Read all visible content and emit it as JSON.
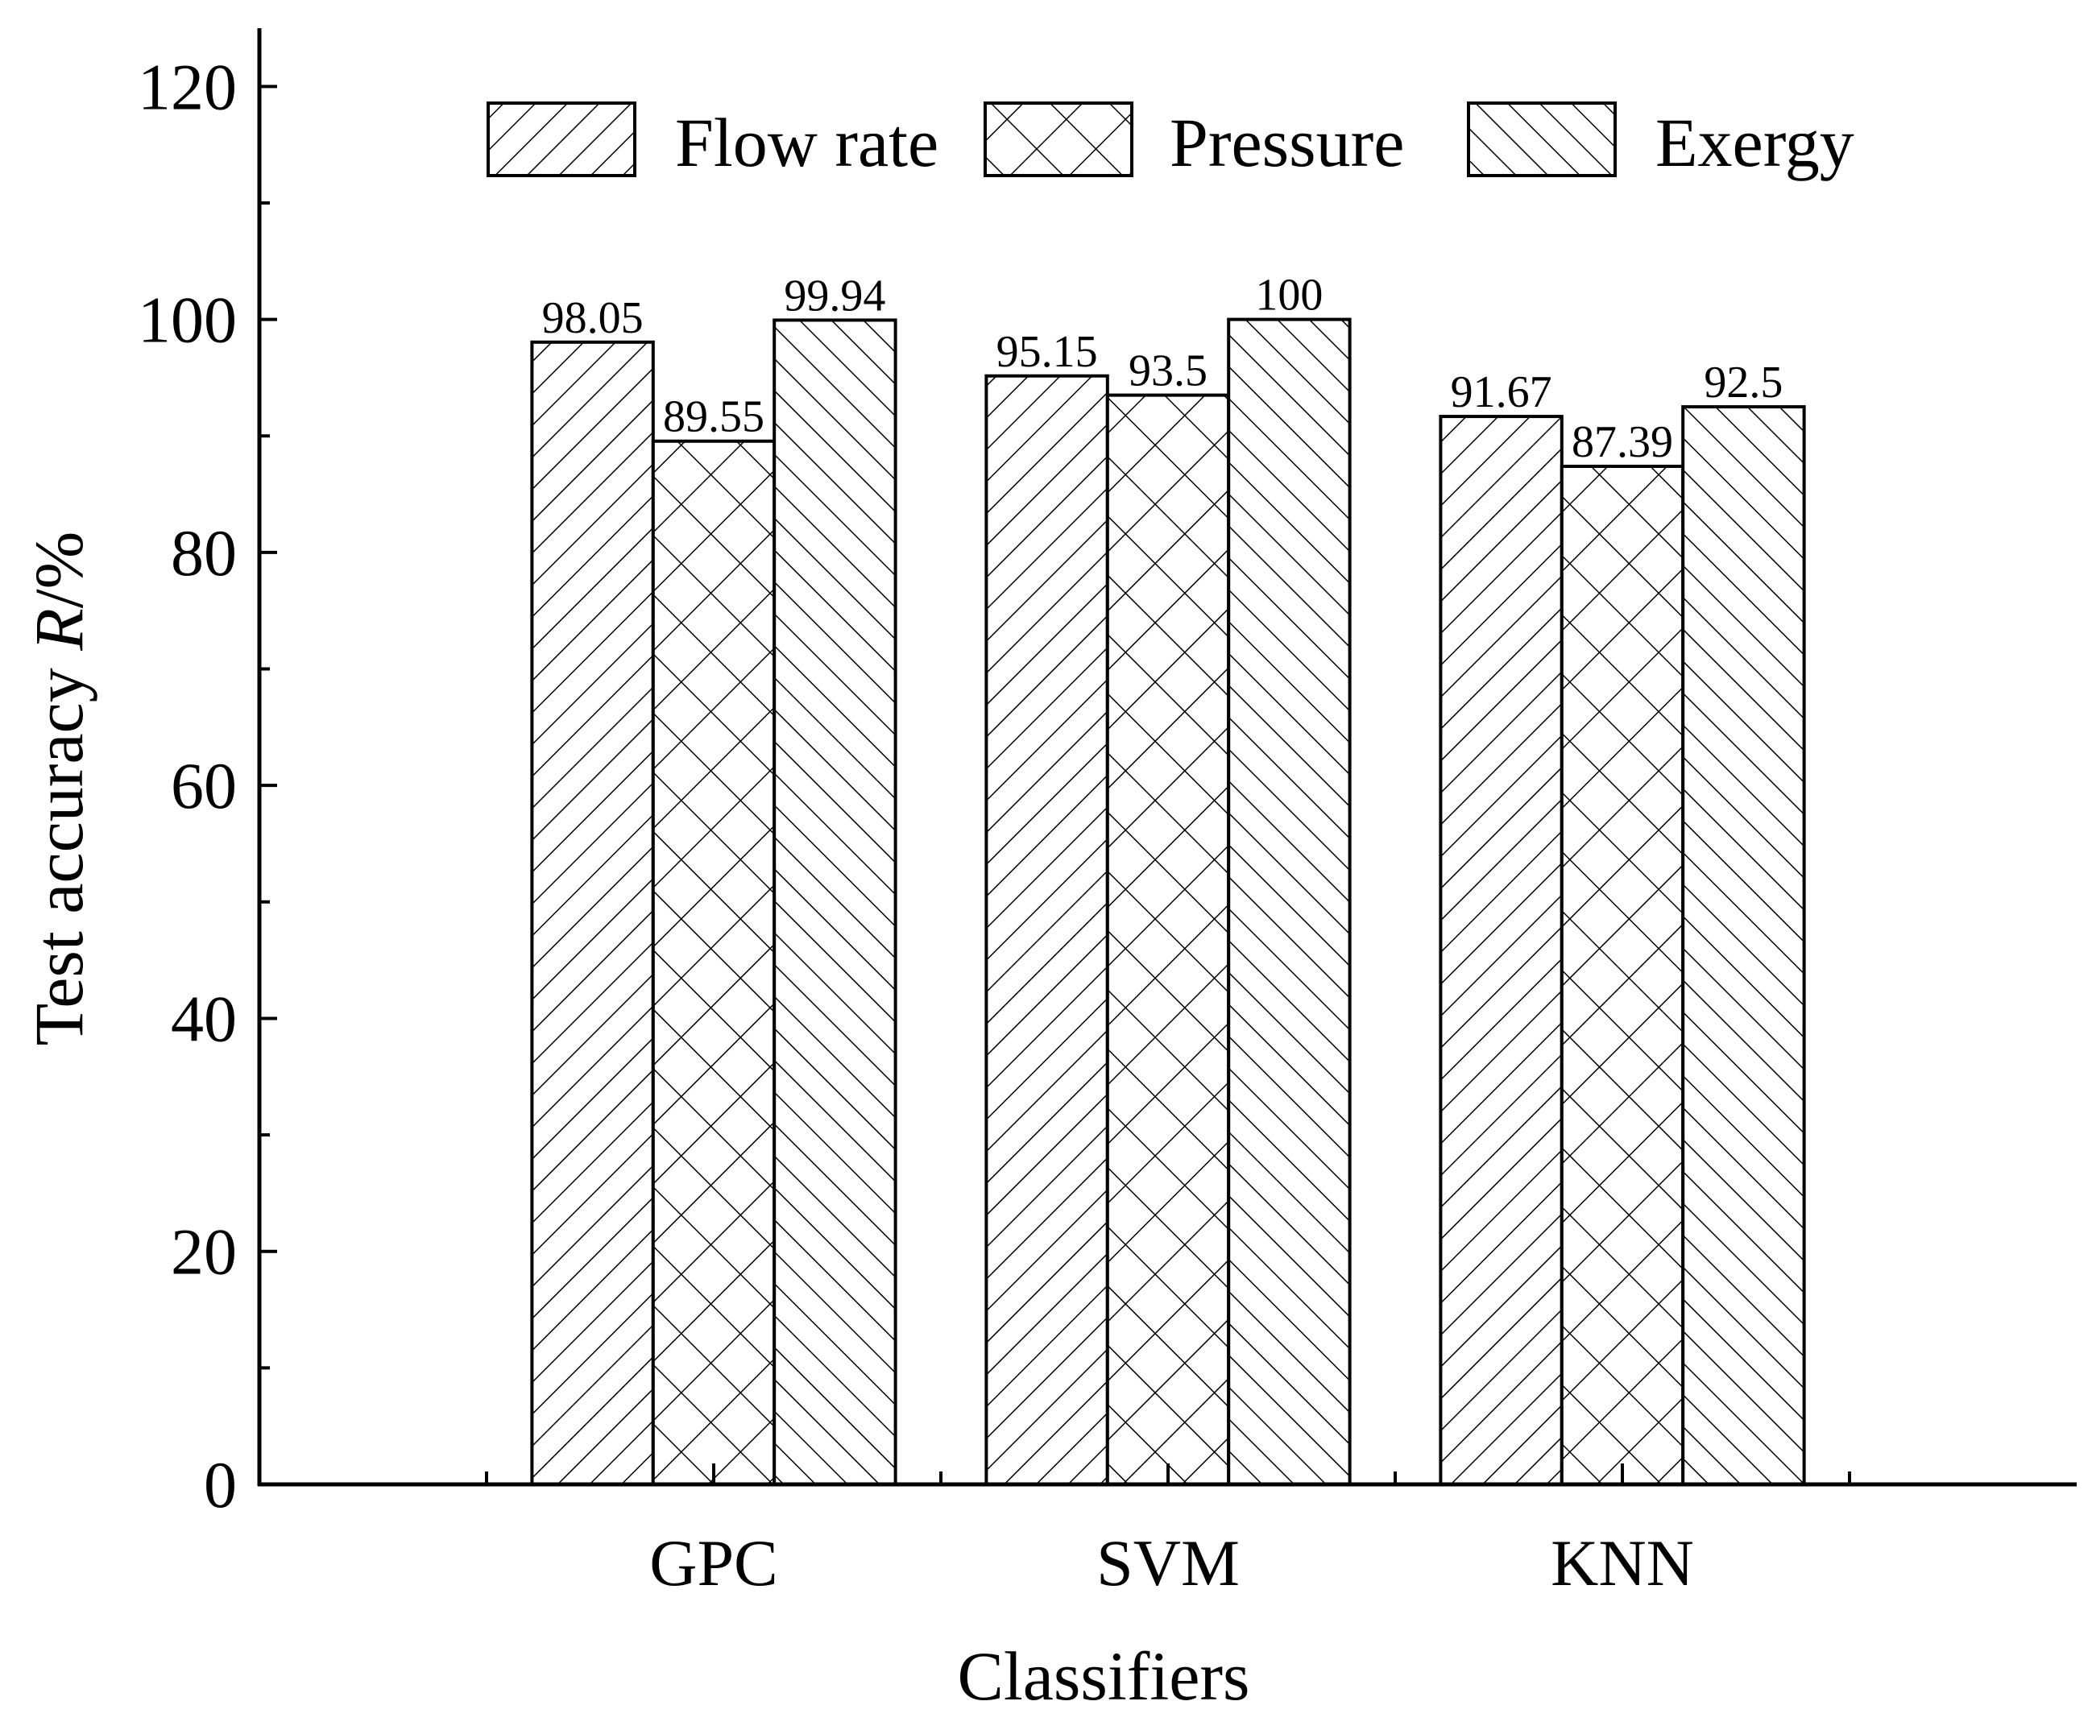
{
  "chart_data": {
    "type": "bar",
    "title": "",
    "categories": [
      "GPC",
      "SVM",
      "KNN"
    ],
    "series": [
      {
        "name": "Flow rate",
        "values": [
          98.05,
          95.15,
          91.67
        ],
        "labels": [
          "98.05",
          "95.15",
          "91.67"
        ],
        "pattern": "diag-right"
      },
      {
        "name": "Pressure",
        "values": [
          89.55,
          93.5,
          87.39
        ],
        "labels": [
          "89.55",
          "93.5",
          "87.39"
        ],
        "pattern": "cross"
      },
      {
        "name": "Exergy",
        "values": [
          99.94,
          100,
          92.5
        ],
        "labels": [
          "99.94",
          "100",
          "92.5"
        ],
        "pattern": "diag-left"
      }
    ],
    "xlabel": "Classifiers",
    "ylabel_prefix": "Test accuracy ",
    "ylabel_italic": "R",
    "ylabel_suffix": "/%",
    "ylim": [
      0,
      125
    ],
    "yticks": [
      0,
      20,
      40,
      60,
      80,
      100,
      120
    ],
    "yticks_minor": [
      10,
      30,
      50,
      70,
      90,
      110
    ],
    "xlim": [
      0,
      4
    ],
    "x_positions": [
      1,
      2,
      3
    ],
    "xticks_minor": [
      0.5,
      1.5,
      2.5,
      3.5
    ],
    "bar_width": 0.8,
    "legend_position": "top",
    "grid": false,
    "colors": {
      "stroke": "#000000",
      "fill": "#ffffff"
    }
  }
}
